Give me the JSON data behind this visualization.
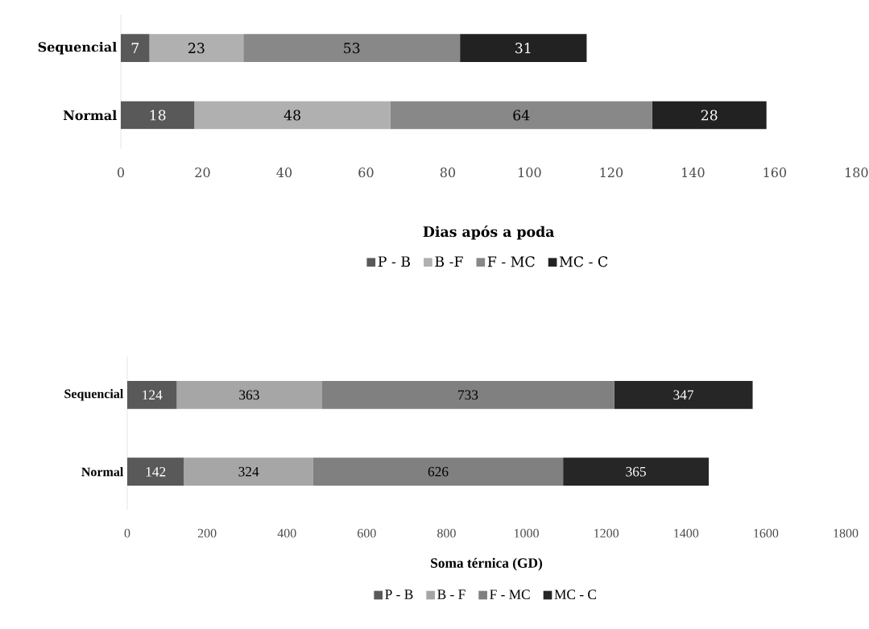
{
  "chart_data": [
    {
      "type": "bar",
      "orientation": "horizontal",
      "stacked": true,
      "data_labels": true,
      "legend": "bottom",
      "grid": false,
      "categories": [
        "Sequencial",
        "Normal"
      ],
      "series": [
        {
          "name": "P - B",
          "color": "#595959",
          "values": [
            7,
            18
          ]
        },
        {
          "name": "B -F",
          "color": "#b0b0b0",
          "values": [
            23,
            48
          ]
        },
        {
          "name": "F - MC",
          "color": "#888888",
          "values": [
            53,
            64
          ]
        },
        {
          "name": "MC - C",
          "color": "#222222",
          "values": [
            31,
            28
          ]
        }
      ],
      "xlabel": "Dias após a poda",
      "xlim": [
        0,
        180
      ],
      "xticks": [
        0,
        20,
        40,
        60,
        80,
        100,
        120,
        140,
        160,
        180
      ]
    },
    {
      "type": "bar",
      "orientation": "horizontal",
      "stacked": true,
      "data_labels": true,
      "legend": "bottom",
      "grid": false,
      "categories": [
        "Sequencial",
        "Normal"
      ],
      "series": [
        {
          "name": "P - B",
          "color": "#595959",
          "values": [
            124,
            142
          ]
        },
        {
          "name": "B - F",
          "color": "#a6a6a6",
          "values": [
            363,
            324
          ]
        },
        {
          "name": "F - MC",
          "color": "#808080",
          "values": [
            733,
            626
          ]
        },
        {
          "name": "MC - C",
          "color": "#262626",
          "values": [
            347,
            365
          ]
        }
      ],
      "xlabel": "Soma térnica (GD)",
      "xlim": [
        0,
        1800
      ],
      "xticks": [
        0,
        200,
        400,
        600,
        800,
        1000,
        1200,
        1400,
        1600,
        1800
      ]
    }
  ]
}
